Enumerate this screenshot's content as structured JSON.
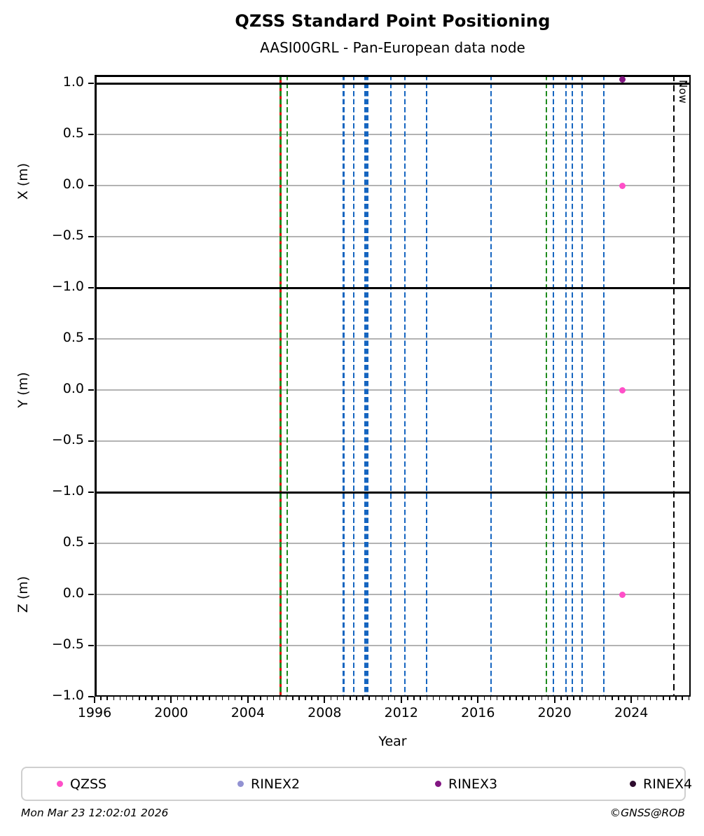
{
  "title": "QZSS Standard Point Positioning",
  "subtitle": "AASI00GRL - Pan-European data node",
  "footer": {
    "left": "Mon Mar 23 12:02:01 2026",
    "right": "©GNSS@ROB"
  },
  "legend": [
    {
      "label": "QZSS",
      "color": "#ff4fc8"
    },
    {
      "label": "RINEX2",
      "color": "#9292d2"
    },
    {
      "label": "RINEX3",
      "color": "#821682"
    },
    {
      "label": "RINEX4",
      "color": "#2e0b2e"
    }
  ],
  "line_colors": {
    "red": "#e80000",
    "green": "#1e8b1e",
    "blue": "#1565c0",
    "black": "#000000"
  },
  "chart_data": {
    "type": "scatter",
    "xlabel": "Year",
    "xlim": [
      1996,
      2027.1
    ],
    "x_ticks": [
      {
        "v": 1996,
        "label": "1996"
      },
      {
        "v": 2000,
        "label": "2000"
      },
      {
        "v": 2004,
        "label": "2004"
      },
      {
        "v": 2008,
        "label": "2008"
      },
      {
        "v": 2012,
        "label": "2012"
      },
      {
        "v": 2016,
        "label": "2016"
      },
      {
        "v": 2020,
        "label": "2020"
      },
      {
        "v": 2024,
        "label": "2024"
      }
    ],
    "x_minor_step_years": 0.3333,
    "subplots": [
      {
        "ylabel": "X (m)",
        "ylim": [
          -1.0,
          1.085
        ],
        "y_ticks": [
          {
            "v": 1.0,
            "label": "1.0"
          },
          {
            "v": 0.5,
            "label": "0.5"
          },
          {
            "v": 0.0,
            "label": "0.0"
          },
          {
            "v": -0.5,
            "label": "−0.5"
          },
          {
            "v": -1.0,
            "label": "−1.0"
          }
        ],
        "points": [
          {
            "series": "RINEX3",
            "x": 2023.52,
            "y": 1.04
          },
          {
            "series": "QZSS",
            "x": 2023.52,
            "y": 0.0
          }
        ]
      },
      {
        "ylabel": "Y (m)",
        "ylim": [
          -1.0,
          1.0
        ],
        "y_ticks": [
          {
            "v": 0.5,
            "label": "0.5"
          },
          {
            "v": 0.0,
            "label": "0.0"
          },
          {
            "v": -0.5,
            "label": "−0.5"
          },
          {
            "v": -1.0,
            "label": "−1.0"
          }
        ],
        "points": [
          {
            "series": "QZSS",
            "x": 2023.52,
            "y": 0.0
          }
        ]
      },
      {
        "ylabel": "Z (m)",
        "ylim": [
          -1.0,
          1.0
        ],
        "y_ticks": [
          {
            "v": 0.5,
            "label": "0.5"
          },
          {
            "v": 0.0,
            "label": "0.0"
          },
          {
            "v": -0.5,
            "label": "−0.5"
          },
          {
            "v": -1.0,
            "label": "−1.0"
          }
        ],
        "points": [
          {
            "series": "QZSS",
            "x": 2023.52,
            "y": 0.0
          }
        ]
      }
    ],
    "event_lines": [
      {
        "x": 2005.7,
        "color": "red",
        "style": "solid"
      },
      {
        "x": 2005.7,
        "color": "green",
        "style": "dashed"
      },
      {
        "x": 2006.05,
        "color": "green",
        "style": "dashed"
      },
      {
        "x": 2009.0,
        "color": "blue",
        "style": "dashed"
      },
      {
        "x": 2009.52,
        "color": "blue",
        "style": "dashed"
      },
      {
        "x": 2010.13,
        "color": "blue",
        "style": "dashed"
      },
      {
        "x": 2010.24,
        "color": "blue",
        "style": "dashed"
      },
      {
        "x": 2011.46,
        "color": "blue",
        "style": "dashed"
      },
      {
        "x": 2012.19,
        "color": "blue",
        "style": "dashed"
      },
      {
        "x": 2013.32,
        "color": "blue",
        "style": "dashed"
      },
      {
        "x": 2016.69,
        "color": "blue",
        "style": "dashed"
      },
      {
        "x": 2019.57,
        "color": "green",
        "style": "dashed"
      },
      {
        "x": 2019.94,
        "color": "blue",
        "style": "dashed"
      },
      {
        "x": 2020.6,
        "color": "blue",
        "style": "dashed"
      },
      {
        "x": 2020.93,
        "color": "blue",
        "style": "dashed"
      },
      {
        "x": 2021.44,
        "color": "blue",
        "style": "dashed"
      },
      {
        "x": 2022.57,
        "color": "blue",
        "style": "dashed"
      }
    ],
    "now_line": {
      "x": 2026.22,
      "label": "Now",
      "color": "black",
      "style": "dashed"
    }
  }
}
